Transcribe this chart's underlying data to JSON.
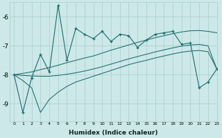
{
  "xlabel": "Humidex (Indice chaleur)",
  "background_color": "#cce8e8",
  "grid_color": "#aacccc",
  "line_color": "#1a6b6b",
  "x_values": [
    0,
    1,
    2,
    3,
    4,
    5,
    6,
    7,
    8,
    9,
    10,
    11,
    12,
    13,
    14,
    15,
    16,
    17,
    18,
    19,
    20,
    21,
    22,
    23
  ],
  "main_line": [
    -8.0,
    -9.3,
    -8.1,
    -7.3,
    -7.9,
    -5.6,
    -7.5,
    -6.4,
    -6.6,
    -6.75,
    -6.5,
    -6.85,
    -6.6,
    -6.65,
    -7.05,
    -6.8,
    -6.6,
    -6.55,
    -6.5,
    -6.95,
    -6.9,
    -8.45,
    -8.25,
    -7.8
  ],
  "upper_line": [
    -8.0,
    -7.95,
    -7.9,
    -7.82,
    -7.75,
    -7.67,
    -7.58,
    -7.5,
    -7.42,
    -7.35,
    -7.25,
    -7.15,
    -7.06,
    -6.97,
    -6.88,
    -6.8,
    -6.72,
    -6.65,
    -6.58,
    -6.52,
    -6.48,
    -6.47,
    -6.5,
    -6.55
  ],
  "mid_line": [
    -8.0,
    -8.02,
    -8.04,
    -8.05,
    -8.05,
    -8.02,
    -7.98,
    -7.93,
    -7.87,
    -7.8,
    -7.72,
    -7.63,
    -7.54,
    -7.45,
    -7.37,
    -7.29,
    -7.21,
    -7.14,
    -7.07,
    -7.01,
    -6.97,
    -6.95,
    -7.0,
    -7.8
  ],
  "lower_line": [
    -8.0,
    -8.2,
    -8.45,
    -9.3,
    -8.85,
    -8.6,
    -8.4,
    -8.25,
    -8.15,
    -8.05,
    -7.95,
    -7.85,
    -7.75,
    -7.65,
    -7.57,
    -7.5,
    -7.42,
    -7.35,
    -7.28,
    -7.22,
    -7.18,
    -7.16,
    -7.2,
    -7.8
  ],
  "ylim": [
    -9.6,
    -5.5
  ],
  "yticks": [
    -9,
    -8,
    -7,
    -6
  ],
  "xlim": [
    -0.5,
    23
  ],
  "xticks": [
    0,
    1,
    2,
    3,
    4,
    5,
    6,
    7,
    8,
    9,
    10,
    11,
    12,
    13,
    14,
    15,
    16,
    17,
    18,
    19,
    20,
    21,
    22,
    23
  ]
}
